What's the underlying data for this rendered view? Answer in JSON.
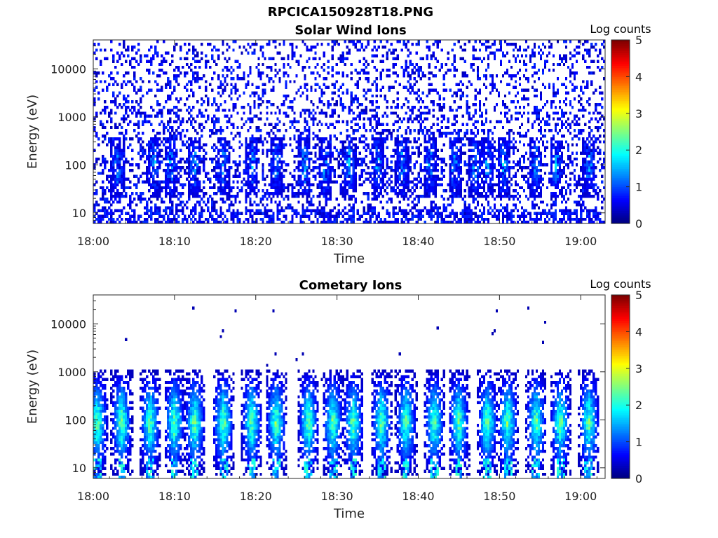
{
  "figure": {
    "title": "RPCICA150928T18.PNG"
  },
  "chart_data": [
    {
      "type": "heatmap",
      "title": "Solar Wind Ions",
      "xlabel": "Time",
      "ylabel": "Energy (eV)",
      "x_tick_labels": [
        "18:00",
        "18:10",
        "18:20",
        "18:30",
        "18:40",
        "18:50",
        "19:00"
      ],
      "x_range": [
        "18:00",
        "19:03"
      ],
      "y_scale": "log",
      "y_tick_labels": [
        "10",
        "100",
        "1000",
        "10000"
      ],
      "y_range": [
        6,
        40000
      ],
      "colorbar": {
        "label": "Log counts",
        "range": [
          0,
          5
        ],
        "tick_labels": [
          "0",
          "1",
          "2",
          "3",
          "4",
          "5"
        ]
      },
      "description_values": {
        "background_noise_log_counts": [
          0,
          1
        ],
        "burst_peak_log_counts": 2,
        "burst_energy_eV": [
          20,
          400
        ]
      },
      "burst_minutes": [
        3.0,
        7.5,
        9.5,
        12.5,
        16.0,
        19.5,
        22.5,
        26.0,
        28.5,
        31.5,
        35.0,
        38.0,
        41.5,
        44.5,
        47.0,
        48.5,
        50.5,
        54.5,
        57.0,
        61.0
      ]
    },
    {
      "type": "heatmap",
      "title": "Cometary Ions",
      "xlabel": "Time",
      "ylabel": "Energy (eV)",
      "x_tick_labels": [
        "18:00",
        "18:10",
        "18:20",
        "18:30",
        "18:40",
        "18:50",
        "19:00"
      ],
      "x_range": [
        "18:00",
        "19:03"
      ],
      "y_scale": "log",
      "y_tick_labels": [
        "10",
        "100",
        "1000",
        "10000"
      ],
      "y_range": [
        6,
        40000
      ],
      "colorbar": {
        "label": "Log counts",
        "range": [
          0,
          5
        ],
        "tick_labels": [
          "0",
          "1",
          "2",
          "3",
          "4",
          "5"
        ]
      },
      "description_values": {
        "burst_peak_log_counts": 2.8,
        "burst_energy_eV": [
          6,
          1000
        ]
      },
      "burst_minutes": [
        0.5,
        3.5,
        7.0,
        10.0,
        12.5,
        16.0,
        19.5,
        22.5,
        26.5,
        29.5,
        32.0,
        35.5,
        38.5,
        42.0,
        45.0,
        48.5,
        51.0,
        54.5,
        57.5,
        61.0
      ]
    }
  ]
}
